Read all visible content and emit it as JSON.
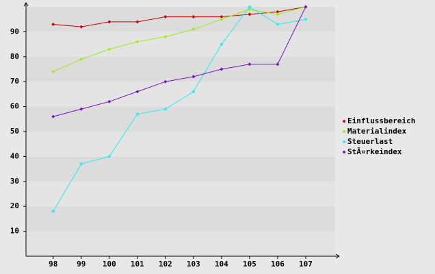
{
  "chart_data": {
    "type": "line",
    "x": [
      98,
      99,
      100,
      101,
      102,
      103,
      104,
      105,
      106,
      107
    ],
    "xlim": [
      97.03,
      108.05
    ],
    "ylim": [
      0,
      100
    ],
    "yticks": [
      10,
      20,
      30,
      40,
      50,
      60,
      70,
      80,
      90
    ],
    "grid": true,
    "legend": "right",
    "series": [
      {
        "name": "Einflussbereich",
        "color": "#cc0000",
        "values": [
          93,
          92,
          94,
          94,
          96,
          96,
          96,
          97,
          98,
          100
        ]
      },
      {
        "name": "Materialindex",
        "color": "#99ee11",
        "values": [
          74,
          79,
          83,
          86,
          88,
          91,
          95,
          99,
          97,
          100
        ]
      },
      {
        "name": "Steuerlast",
        "color": "#22eeee",
        "values": [
          18,
          37,
          40,
          57,
          59,
          66,
          85,
          100,
          93,
          95
        ]
      },
      {
        "name": "StÃ¤rkeindex",
        "color": "#7711cc",
        "values": [
          56,
          59,
          62,
          66,
          70,
          72,
          75,
          77,
          77,
          100
        ]
      }
    ]
  }
}
